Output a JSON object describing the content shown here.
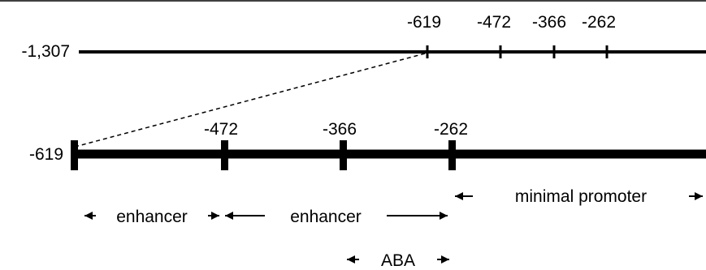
{
  "upper_construct": {
    "start_label": "-1,307",
    "tick_labels": [
      "-619",
      "-472",
      "-366",
      "-262"
    ]
  },
  "lower_construct": {
    "start_label": "-619",
    "tick_labels": [
      "-472",
      "-366",
      "-262"
    ]
  },
  "regions": {
    "enhancer_1": "enhancer",
    "enhancer_2": "enhancer",
    "minimal_promoter": "minimal promoter",
    "aba": "ABA"
  },
  "colors": {
    "line": "#000000",
    "background": "#ffffff"
  }
}
